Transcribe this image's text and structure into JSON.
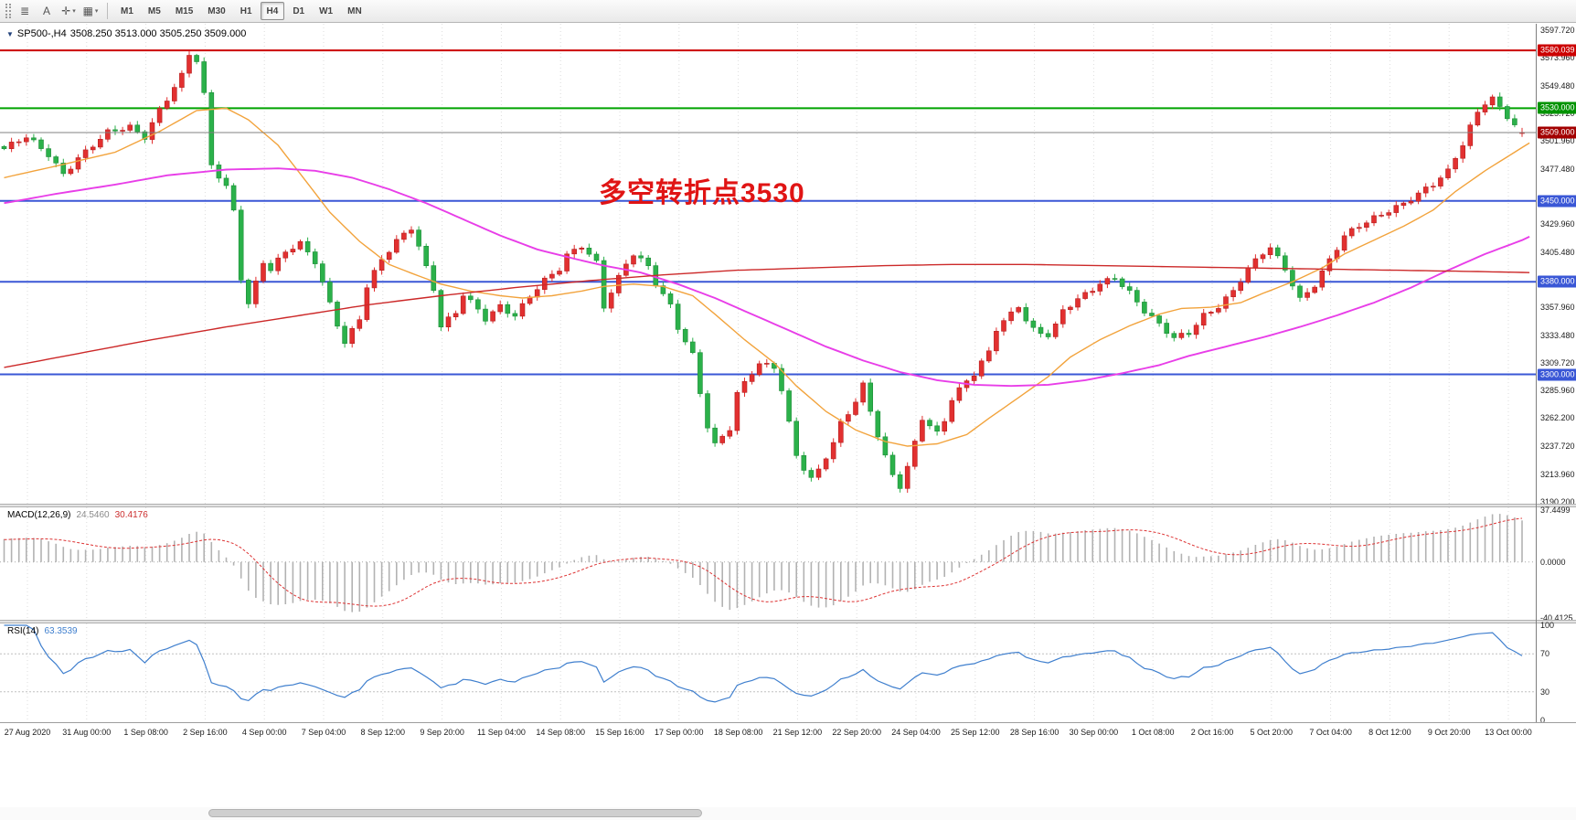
{
  "toolbar": {
    "left_buttons": [
      {
        "name": "chart-list",
        "glyph": "≣",
        "caret": false
      },
      {
        "name": "text-tool",
        "glyph": "A",
        "caret": false
      },
      {
        "name": "crosshair-tool",
        "glyph": "✛",
        "caret": true
      },
      {
        "name": "templates-tool",
        "glyph": "▦",
        "caret": true
      }
    ],
    "timeframes": [
      "M1",
      "M5",
      "M15",
      "M30",
      "H1",
      "H4",
      "D1",
      "W1",
      "MN"
    ],
    "active_timeframe": "H4"
  },
  "chart": {
    "expander_glyph": "▼",
    "symbol": "SP500-,H4",
    "ohlc": "3508.250 3513.000 3505.250 3509.000",
    "annotation": {
      "text": "多空转折点3530",
      "color": "#e01414"
    },
    "price_axis": [
      "3597.720",
      "3573.960",
      "3549.480",
      "3525.720",
      "3501.960",
      "3477.480",
      "3429.960",
      "3405.480",
      "3357.960",
      "3333.480",
      "3309.720",
      "3285.960",
      "3262.200",
      "3237.720",
      "3213.960",
      "3190.200"
    ],
    "levels": [
      {
        "label": "3580.039",
        "price": 3580.039,
        "line_color": "#cc0000",
        "badge_color": "#cc0000"
      },
      {
        "label": "3530.000",
        "price": 3530.0,
        "line_color": "#00a300",
        "badge_color": "#009300"
      },
      {
        "label": "3450.000",
        "price": 3450.0,
        "line_color": "#3a57d6",
        "badge_color": "#3a57d6"
      },
      {
        "label": "3380.000",
        "price": 3380.0,
        "line_color": "#3a57d6",
        "badge_color": "#3a57d6"
      },
      {
        "label": "3300.000",
        "price": 3300.0,
        "line_color": "#3a57d6",
        "badge_color": "#3a57d6"
      }
    ],
    "bid": {
      "label": "3509.000",
      "price": 3509.0,
      "badge_color": "#a30000",
      "line_color": "#808080"
    }
  },
  "macd_panel": {
    "title": "MACD(12,26,9)",
    "value_main": "24.5460",
    "value_signal": "30.4176",
    "axis": [
      "37.4499",
      "0.0000",
      "-40.4125"
    ],
    "range": [
      -40.4125,
      37.4499
    ]
  },
  "rsi_panel": {
    "title": "RSI(14)",
    "value": "63.3539",
    "axis": [
      "100",
      "70",
      "30",
      "0"
    ],
    "levels": [
      70,
      30
    ]
  },
  "time_axis": [
    "27 Aug 2020",
    "31 Aug 00:00",
    "1 Sep 08:00",
    "2 Sep 16:00",
    "4 Sep 00:00",
    "7 Sep 04:00",
    "8 Sep 12:00",
    "9 Sep 20:00",
    "11 Sep 04:00",
    "14 Sep 08:00",
    "15 Sep 16:00",
    "17 Sep 00:00",
    "18 Sep 08:00",
    "21 Sep 12:00",
    "22 Sep 20:00",
    "24 Sep 04:00",
    "25 Sep 12:00",
    "28 Sep 16:00",
    "30 Sep 00:00",
    "1 Oct 08:00",
    "2 Oct 16:00",
    "5 Oct 20:00",
    "7 Oct 04:00",
    "8 Oct 12:00",
    "9 Oct 20:00",
    "13 Oct 00:00"
  ],
  "chart_data": {
    "type": "candlestick",
    "symbol": "SP500-",
    "timeframe": "H4",
    "bars": 206,
    "up_color": "#e23030",
    "down_color": "#2bb14a",
    "up_stroke": "#b51f1f",
    "down_stroke": "#1f8c39",
    "last_candle": {
      "open": 3508.25,
      "high": 3513.0,
      "low": 3505.25,
      "close": 3509.0
    },
    "close_waypoints": [
      [
        0,
        3495
      ],
      [
        3,
        3504
      ],
      [
        6,
        3490
      ],
      [
        8,
        3474
      ],
      [
        10,
        3488
      ],
      [
        12,
        3498
      ],
      [
        14,
        3508
      ],
      [
        17,
        3513
      ],
      [
        19,
        3506
      ],
      [
        21,
        3530
      ],
      [
        24,
        3558
      ],
      [
        25,
        3576
      ],
      [
        26,
        3570
      ],
      [
        27,
        3540
      ],
      [
        28,
        3480
      ],
      [
        30,
        3462
      ],
      [
        31,
        3442
      ],
      [
        32,
        3385
      ],
      [
        33,
        3362
      ],
      [
        35,
        3398
      ],
      [
        36,
        3390
      ],
      [
        38,
        3405
      ],
      [
        40,
        3412
      ],
      [
        42,
        3398
      ],
      [
        43,
        3380
      ],
      [
        45,
        3345
      ],
      [
        46,
        3328
      ],
      [
        48,
        3348
      ],
      [
        49,
        3375
      ],
      [
        51,
        3398
      ],
      [
        53,
        3415
      ],
      [
        55,
        3428
      ],
      [
        56,
        3412
      ],
      [
        58,
        3375
      ],
      [
        59,
        3342
      ],
      [
        61,
        3352
      ],
      [
        62,
        3368
      ],
      [
        64,
        3355
      ],
      [
        65,
        3348
      ],
      [
        67,
        3360
      ],
      [
        69,
        3352
      ],
      [
        71,
        3368
      ],
      [
        73,
        3380
      ],
      [
        75,
        3390
      ],
      [
        76,
        3402
      ],
      [
        78,
        3412
      ],
      [
        80,
        3398
      ],
      [
        81,
        3360
      ],
      [
        82,
        3372
      ],
      [
        84,
        3395
      ],
      [
        85,
        3403
      ],
      [
        87,
        3392
      ],
      [
        88,
        3378
      ],
      [
        90,
        3360
      ],
      [
        91,
        3342
      ],
      [
        93,
        3318
      ],
      [
        94,
        3285
      ],
      [
        95,
        3255
      ],
      [
        96,
        3238
      ],
      [
        98,
        3252
      ],
      [
        99,
        3282
      ],
      [
        101,
        3302
      ],
      [
        102,
        3310
      ],
      [
        104,
        3308
      ],
      [
        105,
        3288
      ],
      [
        106,
        3258
      ],
      [
        107,
        3230
      ],
      [
        108,
        3218
      ],
      [
        109,
        3208
      ],
      [
        110,
        3216
      ],
      [
        111,
        3228
      ],
      [
        112,
        3240
      ],
      [
        113,
        3258
      ],
      [
        115,
        3278
      ],
      [
        116,
        3292
      ],
      [
        117,
        3270
      ],
      [
        118,
        3248
      ],
      [
        119,
        3228
      ],
      [
        120,
        3212
      ],
      [
        121,
        3202
      ],
      [
        122,
        3218
      ],
      [
        123,
        3240
      ],
      [
        124,
        3262
      ],
      [
        126,
        3250
      ],
      [
        127,
        3262
      ],
      [
        128,
        3280
      ],
      [
        130,
        3295
      ],
      [
        131,
        3300
      ],
      [
        133,
        3318
      ],
      [
        134,
        3338
      ],
      [
        136,
        3352
      ],
      [
        137,
        3360
      ],
      [
        138,
        3348
      ],
      [
        139,
        3340
      ],
      [
        141,
        3335
      ],
      [
        142,
        3342
      ],
      [
        143,
        3355
      ],
      [
        145,
        3363
      ],
      [
        146,
        3368
      ],
      [
        148,
        3378
      ],
      [
        150,
        3385
      ],
      [
        152,
        3372
      ],
      [
        154,
        3355
      ],
      [
        156,
        3342
      ],
      [
        158,
        3330
      ],
      [
        160,
        3336
      ],
      [
        162,
        3352
      ],
      [
        164,
        3360
      ],
      [
        166,
        3372
      ],
      [
        168,
        3390
      ],
      [
        170,
        3404
      ],
      [
        171,
        3409
      ],
      [
        173,
        3392
      ],
      [
        175,
        3366
      ],
      [
        177,
        3378
      ],
      [
        179,
        3398
      ],
      [
        181,
        3418
      ],
      [
        183,
        3428
      ],
      [
        185,
        3436
      ],
      [
        187,
        3443
      ],
      [
        189,
        3448
      ],
      [
        191,
        3455
      ],
      [
        193,
        3463
      ],
      [
        195,
        3475
      ],
      [
        196,
        3488
      ],
      [
        197,
        3500
      ],
      [
        198,
        3515
      ],
      [
        199,
        3528
      ],
      [
        200,
        3536
      ],
      [
        201,
        3539
      ],
      [
        202,
        3530
      ],
      [
        203,
        3522
      ],
      [
        204,
        3514
      ],
      [
        205,
        3509
      ]
    ],
    "moving_averages": [
      {
        "name": "ma-fast",
        "color": "#f2a33c",
        "points": [
          [
            0,
            3470
          ],
          [
            7,
            3480
          ],
          [
            15,
            3492
          ],
          [
            21,
            3510
          ],
          [
            26,
            3528
          ],
          [
            30,
            3530
          ],
          [
            33,
            3520
          ],
          [
            37,
            3498
          ],
          [
            41,
            3465
          ],
          [
            44,
            3440
          ],
          [
            48,
            3415
          ],
          [
            52,
            3395
          ],
          [
            56,
            3385
          ],
          [
            59,
            3378
          ],
          [
            63,
            3372
          ],
          [
            67,
            3368
          ],
          [
            70,
            3366
          ],
          [
            74,
            3368
          ],
          [
            78,
            3372
          ],
          [
            81,
            3376
          ],
          [
            85,
            3378
          ],
          [
            89,
            3376
          ],
          [
            93,
            3368
          ],
          [
            96,
            3352
          ],
          [
            100,
            3330
          ],
          [
            104,
            3310
          ],
          [
            107,
            3290
          ],
          [
            111,
            3268
          ],
          [
            115,
            3252
          ],
          [
            119,
            3242
          ],
          [
            122,
            3238
          ],
          [
            126,
            3240
          ],
          [
            130,
            3248
          ],
          [
            133,
            3262
          ],
          [
            137,
            3280
          ],
          [
            141,
            3298
          ],
          [
            144,
            3315
          ],
          [
            148,
            3330
          ],
          [
            152,
            3342
          ],
          [
            156,
            3352
          ],
          [
            159,
            3357
          ],
          [
            163,
            3358
          ],
          [
            167,
            3362
          ],
          [
            170,
            3370
          ],
          [
            174,
            3380
          ],
          [
            178,
            3392
          ],
          [
            181,
            3404
          ],
          [
            185,
            3416
          ],
          [
            189,
            3428
          ],
          [
            193,
            3442
          ],
          [
            196,
            3458
          ],
          [
            200,
            3476
          ],
          [
            204,
            3492
          ],
          [
            206,
            3500
          ]
        ]
      },
      {
        "name": "ma-medium",
        "color": "#e83ee8",
        "points": [
          [
            0,
            3448
          ],
          [
            7,
            3456
          ],
          [
            15,
            3464
          ],
          [
            22,
            3472
          ],
          [
            30,
            3477
          ],
          [
            37,
            3478
          ],
          [
            42,
            3476
          ],
          [
            47,
            3470
          ],
          [
            52,
            3460
          ],
          [
            57,
            3448
          ],
          [
            62,
            3434
          ],
          [
            67,
            3420
          ],
          [
            72,
            3408
          ],
          [
            77,
            3400
          ],
          [
            81,
            3394
          ],
          [
            86,
            3388
          ],
          [
            91,
            3378
          ],
          [
            96,
            3366
          ],
          [
            101,
            3352
          ],
          [
            106,
            3338
          ],
          [
            111,
            3324
          ],
          [
            116,
            3312
          ],
          [
            121,
            3302
          ],
          [
            126,
            3295
          ],
          [
            131,
            3291
          ],
          [
            136,
            3290
          ],
          [
            141,
            3291
          ],
          [
            146,
            3295
          ],
          [
            151,
            3301
          ],
          [
            156,
            3308
          ],
          [
            160,
            3316
          ],
          [
            165,
            3324
          ],
          [
            170,
            3332
          ],
          [
            175,
            3341
          ],
          [
            180,
            3351
          ],
          [
            185,
            3362
          ],
          [
            190,
            3375
          ],
          [
            195,
            3390
          ],
          [
            200,
            3404
          ],
          [
            205,
            3416
          ],
          [
            206,
            3419
          ]
        ]
      },
      {
        "name": "ma-slow",
        "color": "#cc2929",
        "points": [
          [
            0,
            3306
          ],
          [
            10,
            3318
          ],
          [
            20,
            3330
          ],
          [
            30,
            3341
          ],
          [
            40,
            3351
          ],
          [
            49,
            3360
          ],
          [
            59,
            3368
          ],
          [
            69,
            3375
          ],
          [
            79,
            3381
          ],
          [
            89,
            3386
          ],
          [
            99,
            3390
          ],
          [
            109,
            3392
          ],
          [
            119,
            3394
          ],
          [
            128,
            3395
          ],
          [
            138,
            3395
          ],
          [
            148,
            3394
          ],
          [
            158,
            3393
          ],
          [
            168,
            3392
          ],
          [
            178,
            3391
          ],
          [
            188,
            3390
          ],
          [
            198,
            3389
          ],
          [
            206,
            3388
          ]
        ]
      }
    ]
  }
}
